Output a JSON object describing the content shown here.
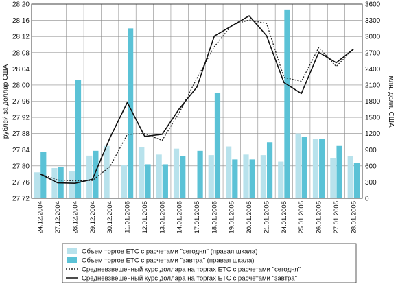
{
  "chart_data": {
    "type": "bar+line",
    "title": "",
    "ylabel_left": "рублей за доллар США",
    "ylabel_right": "млн. долл. США",
    "ylim_left": [
      27.72,
      28.2
    ],
    "yticks_left": [
      "27,72",
      "27,76",
      "27,80",
      "27,84",
      "27,88",
      "27,92",
      "27,96",
      "28,00",
      "28,04",
      "28,08",
      "28,12",
      "28,16",
      "28,20"
    ],
    "ylim_right": [
      0,
      3600
    ],
    "yticks_right": [
      "0",
      "300",
      "600",
      "900",
      "1200",
      "1500",
      "1800",
      "2100",
      "2400",
      "2700",
      "3000",
      "3300",
      "3600"
    ],
    "categories": [
      "24.12.2004",
      "27.12.2004",
      "28.12.2004",
      "29.12.2004",
      "30.12.2004",
      "11.01.2005",
      "12.01.2005",
      "13.01.2005",
      "14.01.2005",
      "17.01.2005",
      "18.01.2005",
      "19.01.2005",
      "20.01.2005",
      "21.01.2005",
      "24.01.2005",
      "25.01.2005",
      "26.01.2005",
      "27.01.2005",
      "28.01.2005"
    ],
    "grid": true,
    "legend_position": "bottom",
    "series": [
      {
        "name": "Объем торгов ЕТС с расчетами \"сегодня\" (правая шкала)",
        "kind": "bar",
        "axis": "right",
        "color": "#b8e2ec",
        "values": [
          480,
          560,
          500,
          790,
          970,
          610,
          950,
          810,
          920,
          0,
          800,
          960,
          810,
          800,
          680,
          1200,
          1100,
          740,
          780
        ]
      },
      {
        "name": "Объем торгов ЕТС с расчетами \"завтра\" (правая шкала)",
        "kind": "bar",
        "axis": "right",
        "color": "#5bc2d6",
        "values": [
          860,
          580,
          2200,
          880,
          0,
          3150,
          630,
          630,
          780,
          880,
          1950,
          720,
          720,
          1040,
          3500,
          1140,
          1100,
          970,
          660
        ]
      },
      {
        "name": "Средневзвешенный курс доллара на торгах ЕТС с расчетами \"сегодня\"",
        "kind": "line",
        "axis": "left",
        "color": "#222222",
        "dash": "2,2",
        "values": [
          27.78,
          27.765,
          27.763,
          27.764,
          27.798,
          27.878,
          27.88,
          27.863,
          27.933,
          28.017,
          28.095,
          28.148,
          28.161,
          28.152,
          28.019,
          28.009,
          28.093,
          28.046,
          28.089
        ]
      },
      {
        "name": "Средневзвешенный курс доллара на торгах ЕТС с расчетами \"завтра\"",
        "kind": "line",
        "axis": "left",
        "color": "#111111",
        "dash": "",
        "values": [
          27.78,
          27.758,
          27.757,
          27.767,
          27.869,
          27.957,
          27.873,
          27.878,
          27.942,
          27.995,
          28.121,
          28.146,
          28.171,
          28.122,
          28.006,
          27.979,
          28.081,
          28.055,
          28.089
        ]
      }
    ]
  }
}
